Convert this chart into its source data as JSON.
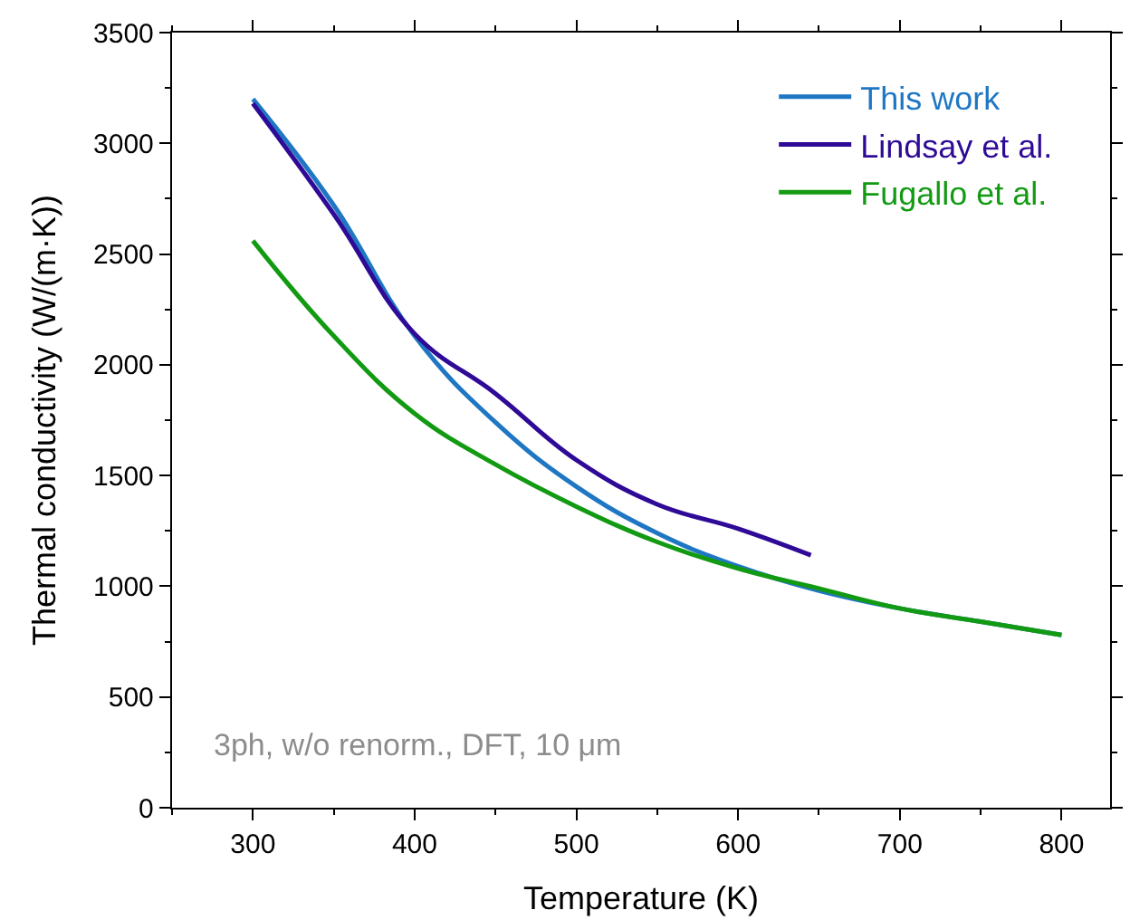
{
  "chart_data": {
    "type": "line",
    "xlabel": "Temperature (K)",
    "ylabel": "Thermal conductivity (W/(m·K))",
    "xlim": [
      250,
      830
    ],
    "xticks": [
      300,
      400,
      500,
      600,
      700,
      800
    ],
    "ylim": [
      0,
      3500
    ],
    "yticks": [
      0,
      500,
      1000,
      1500,
      2000,
      2500,
      3000,
      3500
    ],
    "legend": "top right",
    "marker": "none",
    "line_style": "solid",
    "annotations": [
      "3ph, w/o renorm., DFT, 10 μm"
    ],
    "series": [
      {
        "name": "This work",
        "color": "#1f77c4",
        "x": [
          300,
          350,
          400,
          450,
          500,
          550,
          600,
          650,
          700,
          750,
          800
        ],
        "values": [
          3200,
          2720,
          2130,
          1740,
          1450,
          1240,
          1090,
          980,
          900,
          840,
          780
        ]
      },
      {
        "name": "Lindsay et al.",
        "color": "#2e0a96",
        "x": [
          300,
          350,
          400,
          450,
          500,
          550,
          600,
          645
        ],
        "values": [
          3180,
          2680,
          2140,
          1870,
          1570,
          1370,
          1260,
          1140
        ]
      },
      {
        "name": "Fugallo et al.",
        "color": "#139a13",
        "x": [
          300,
          350,
          400,
          450,
          500,
          550,
          600,
          650,
          700,
          750,
          800
        ],
        "values": [
          2560,
          2130,
          1780,
          1550,
          1360,
          1200,
          1080,
          990,
          900,
          840,
          780
        ]
      }
    ]
  }
}
